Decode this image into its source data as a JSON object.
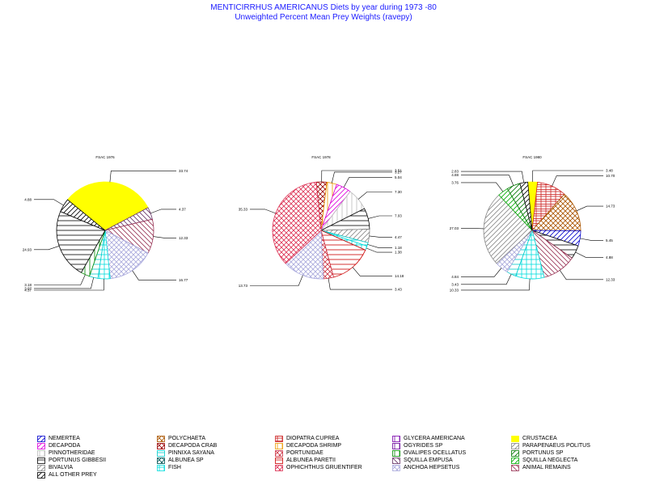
{
  "title": "MENTICIRRHUS AMERICANUS Diets by year during 1973 -80",
  "subtitle": "Unweighted Percent Mean Prey Weights (ravepy)",
  "colors": {
    "title": "#1a1aff",
    "NEMERTEA": "#0000cc",
    "DECAPODA": "#dd00dd",
    "PINNOTHERIDAE": "#bbbbbb",
    "PORTUNUS GIBBESII": "#000000",
    "BIVALVIA": "#888888",
    "ALL OTHER PREY": "#000000",
    "POLYCHAETA": "#aa5500",
    "DECAPODA CRAB": "#990000",
    "PINNIXA SAYANA": "#00cccc",
    "ALBUNEA SP": "#005555",
    "FISH": "#00dddd",
    "DIOPATRA CUPREA": "#cc2222",
    "DECAPODA SHRIMP": "#ee9900",
    "PORTUNIDAE": "#cc3344",
    "ALBUNEA PARETII": "#cc0000",
    "OPHICHTHUS GRUENTIFER": "#dd3355",
    "GLYCERA AMERICANA": "#7700aa",
    "OGYRIDES SP": "#660099",
    "OVALIPES OCELLATUS": "#008800",
    "SQUILLA EMPUSA": "#663366",
    "ANCHOA HEPSETUS": "#aaaadd",
    "CRUSTACEA": "#ffff00",
    "PARAPENAEUS POLITUS": "#888888",
    "PORTUNUS SP": "#007700",
    "SQUILLA NEGLECTA": "#00aa00",
    "ANIMAL REMAINS": "#993355"
  },
  "legend": [
    {
      "name": "NEMERTEA",
      "pattern": "diag-up"
    },
    {
      "name": "DECAPODA",
      "pattern": "diag-up"
    },
    {
      "name": "PINNOTHERIDAE",
      "pattern": "vert"
    },
    {
      "name": "PORTUNUS GIBBESII",
      "pattern": "horiz"
    },
    {
      "name": "BIVALVIA",
      "pattern": "diag-up"
    },
    {
      "name": "ALL OTHER PREY",
      "pattern": "diag-up"
    },
    {
      "name": "POLYCHAETA",
      "pattern": "diag-cross"
    },
    {
      "name": "DECAPODA CRAB",
      "pattern": "diag-cross"
    },
    {
      "name": "PINNIXA SAYANA",
      "pattern": "horiz"
    },
    {
      "name": "ALBUNEA SP",
      "pattern": "diag-cross"
    },
    {
      "name": "FISH",
      "pattern": "grid"
    },
    {
      "name": "DIOPATRA CUPREA",
      "pattern": "box"
    },
    {
      "name": "DECAPODA SHRIMP",
      "pattern": "vert"
    },
    {
      "name": "PORTUNIDAE",
      "pattern": "diag-cross"
    },
    {
      "name": "ALBUNEA PARETII",
      "pattern": "horiz"
    },
    {
      "name": "OPHICHTHUS GRUENTIFER",
      "pattern": "diag-cross"
    },
    {
      "name": "GLYCERA AMERICANA",
      "pattern": "vert"
    },
    {
      "name": "OGYRIDES SP",
      "pattern": "vert"
    },
    {
      "name": "OVALIPES OCELLATUS",
      "pattern": "vert"
    },
    {
      "name": "SQUILLA EMPUSA",
      "pattern": "diag-down"
    },
    {
      "name": "ANCHOA HEPSETUS",
      "pattern": "diag-cross"
    },
    {
      "name": "CRUSTACEA",
      "pattern": "solid"
    },
    {
      "name": "PARAPENAEUS POLITUS",
      "pattern": "diag-up"
    },
    {
      "name": "PORTUNUS SP",
      "pattern": "diag-up"
    },
    {
      "name": "SQUILLA NEGLECTA",
      "pattern": "diag-up"
    },
    {
      "name": "ANIMAL REMAINS",
      "pattern": "diag-down"
    }
  ],
  "chart_data": [
    {
      "type": "pie",
      "title": "FSAC 1976",
      "slices": [
        {
          "label": "33.74",
          "value": 33.74,
          "category": "CRUSTACEA"
        },
        {
          "label": "4.37",
          "value": 4.37,
          "category": "SQUILLA EMPUSA"
        },
        {
          "label": "12.33",
          "value": 12.33,
          "category": "ANIMAL REMAINS"
        },
        {
          "label": "16.77",
          "value": 16.77,
          "category": "ANCHOA HEPSETUS"
        },
        {
          "label": "4.37",
          "value": 4.37,
          "category": "FISH"
        },
        {
          "label": "3.07",
          "value": 3.07,
          "category": "PINNIXA SAYANA"
        },
        {
          "label": "3.18",
          "value": 3.18,
          "category": "OVALIPES OCELLATUS"
        },
        {
          "label": "24.93",
          "value": 24.93,
          "category": "PORTUNUS GIBBESII"
        },
        {
          "label": "4.88",
          "value": 4.88,
          "category": "ALL OTHER PREY"
        }
      ]
    },
    {
      "type": "pie",
      "title": "FSAC 1978",
      "slices": [
        {
          "label": "3.51",
          "value": 3.51,
          "category": "DECAPODA CRAB"
        },
        {
          "label": "3.27",
          "value": 3.27,
          "category": "DECAPODA SHRIMP"
        },
        {
          "label": "5.04",
          "value": 5.04,
          "category": "DECAPODA"
        },
        {
          "label": "7.30",
          "value": 7.3,
          "category": "PINNOTHERIDAE"
        },
        {
          "label": "7.03",
          "value": 7.03,
          "category": "PORTUNUS GIBBESII"
        },
        {
          "label": "4.47",
          "value": 4.47,
          "category": "BIVALVIA"
        },
        {
          "label": "1.18",
          "value": 1.18,
          "category": "PINNIXA SAYANA"
        },
        {
          "label": "1.38",
          "value": 1.38,
          "category": "FISH"
        },
        {
          "label": "14.18",
          "value": 14.18,
          "category": "ALBUNEA PARETII"
        },
        {
          "label": "3.43",
          "value": 3.43,
          "category": "PORTUNIDAE"
        },
        {
          "label": "13.73",
          "value": 13.73,
          "category": "ANCHOA HEPSETUS"
        },
        {
          "label": "35.33",
          "value": 35.33,
          "category": "OPHICHTHUS GRUENTIFER"
        }
      ]
    },
    {
      "type": "pie",
      "title": "FSAC 1980",
      "slices": [
        {
          "label": "3.48",
          "value": 3.48,
          "category": "CRUSTACEA"
        },
        {
          "label": "10.70",
          "value": 10.7,
          "category": "DIOPATRA CUPREA"
        },
        {
          "label": "14.73",
          "value": 14.73,
          "category": "POLYCHAETA"
        },
        {
          "label": "5.45",
          "value": 5.45,
          "category": "NEMERTEA"
        },
        {
          "label": "4.88",
          "value": 4.88,
          "category": "PORTUNUS GIBBESII"
        },
        {
          "label": "12.33",
          "value": 12.33,
          "category": "ANIMAL REMAINS"
        },
        {
          "label": "10.33",
          "value": 10.33,
          "category": "FISH"
        },
        {
          "label": "3.43",
          "value": 3.43,
          "category": "PINNIXA SAYANA"
        },
        {
          "label": "4.84",
          "value": 4.84,
          "category": "ANCHOA HEPSETUS"
        },
        {
          "label": "27.03",
          "value": 27.03,
          "category": "PARAPENAEUS POLITUS"
        },
        {
          "label": "3.76",
          "value": 3.76,
          "category": "SQUILLA NEGLECTA"
        },
        {
          "label": "4.88",
          "value": 4.88,
          "category": "PORTUNUS SP"
        },
        {
          "label": "2.83",
          "value": 2.83,
          "category": "ALL OTHER PREY"
        }
      ]
    }
  ]
}
